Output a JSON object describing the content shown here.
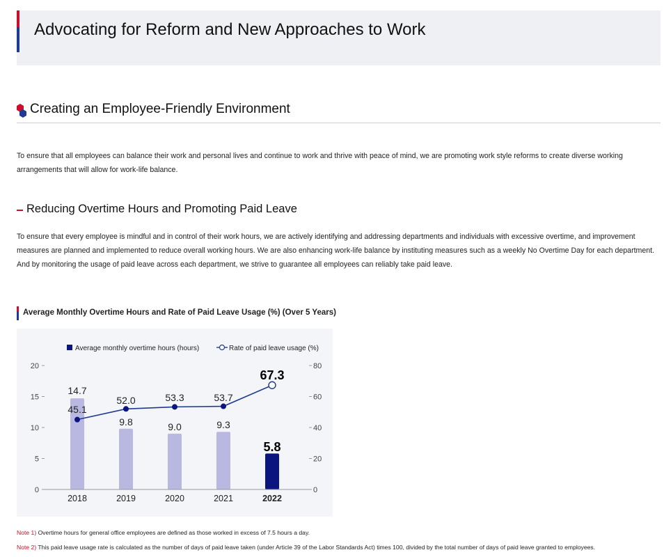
{
  "header": {
    "title": "Advocating for Reform and New Approaches to Work"
  },
  "section": {
    "title": "Creating an Employee-Friendly Environment",
    "paragraph": "To ensure that all employees can balance their work and personal lives and continue to work and thrive with peace of mind, we are promoting work style reforms to create diverse working arrangements that will allow for work-life balance."
  },
  "subsection": {
    "title": "Reducing Overtime Hours and Promoting Paid Leave",
    "paragraph": "To ensure that every employee is mindful and in control of their work hours, we are actively identifying and addressing departments and individuals with excessive overtime, and improvement measures are planned and implemented to reduce overall working hours. We are also enhancing work-life balance by instituting measures such as a weekly No Overtime Day for each department. And by monitoring the usage of paid leave across each department, we strive to guarantee all employees can reliably take paid leave."
  },
  "chart_data": {
    "type": "bar",
    "title": "Average Monthly Overtime Hours and Rate of Paid Leave Usage (%) (Over 5 Years)",
    "categories": [
      "2018",
      "2019",
      "2020",
      "2021",
      "2022"
    ],
    "series": [
      {
        "name": "Average monthly overtime hours (hours)",
        "type": "bar",
        "axis": "left",
        "values": [
          14.7,
          9.8,
          9.0,
          9.3,
          5.8
        ],
        "labels": [
          "14.7",
          "9.8",
          "9.0",
          "9.3",
          "5.8"
        ]
      },
      {
        "name": "Rate of paid leave usage (%)",
        "type": "line",
        "axis": "right",
        "values": [
          45.1,
          52.0,
          53.3,
          53.7,
          67.3
        ],
        "labels": [
          "45.1",
          "52.0",
          "53.3",
          "53.7",
          "67.3"
        ]
      }
    ],
    "ylim_left": [
      0,
      20
    ],
    "ylim_right": [
      0,
      80
    ],
    "left_ticks": [
      "0",
      "5",
      "10",
      "15",
      "20"
    ],
    "right_ticks": [
      "0",
      "20",
      "40",
      "60",
      "80"
    ],
    "highlight_category": "2022",
    "legend_position": "top",
    "colors": {
      "bar": "#b8b8e0",
      "bar_highlight": "#0a1580",
      "line": "#1f3a93",
      "point": "#0a1580",
      "point_highlight": "#ffffff"
    }
  },
  "notes": [
    {
      "label": "Note 1)",
      "text": "Overtime hours for general office employees are defined as those worked in excess of 7.5 hours a day."
    },
    {
      "label": "Note 2)",
      "text": "This paid leave usage rate is calculated as the number of days of paid leave taken (under Article 39 of the Labor Standards Act) times 100, divided by the total number of days of paid leave granted to employees."
    }
  ]
}
